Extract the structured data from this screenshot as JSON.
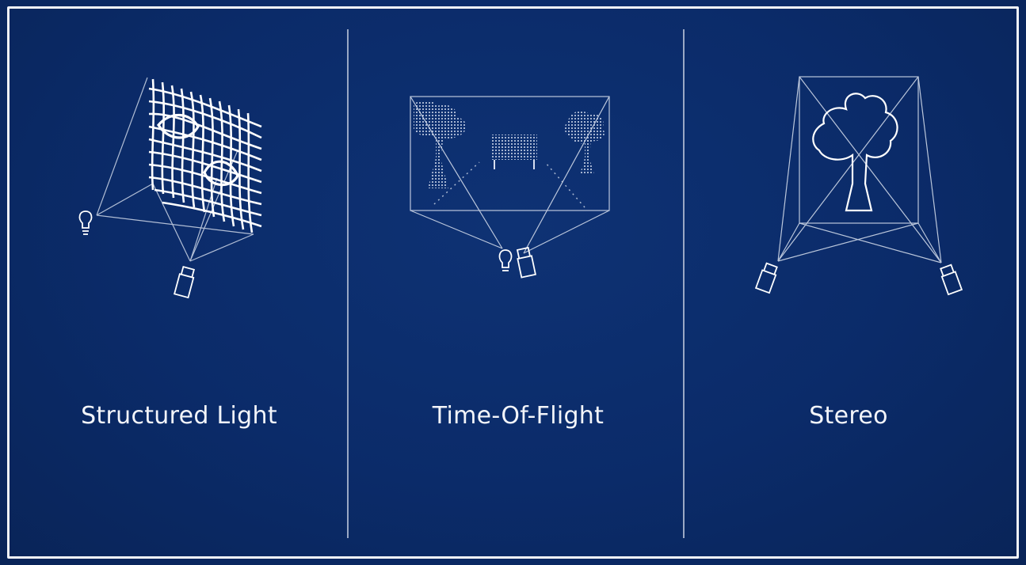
{
  "panels": [
    {
      "id": "structured-light",
      "label": "Structured Light"
    },
    {
      "id": "time-of-flight",
      "label": "Time-Of-Flight"
    },
    {
      "id": "stereo",
      "label": "Stereo"
    }
  ],
  "colors": {
    "background": "#0b2a66",
    "line": "#dfe6f2",
    "frame": "#f2f4f8"
  }
}
